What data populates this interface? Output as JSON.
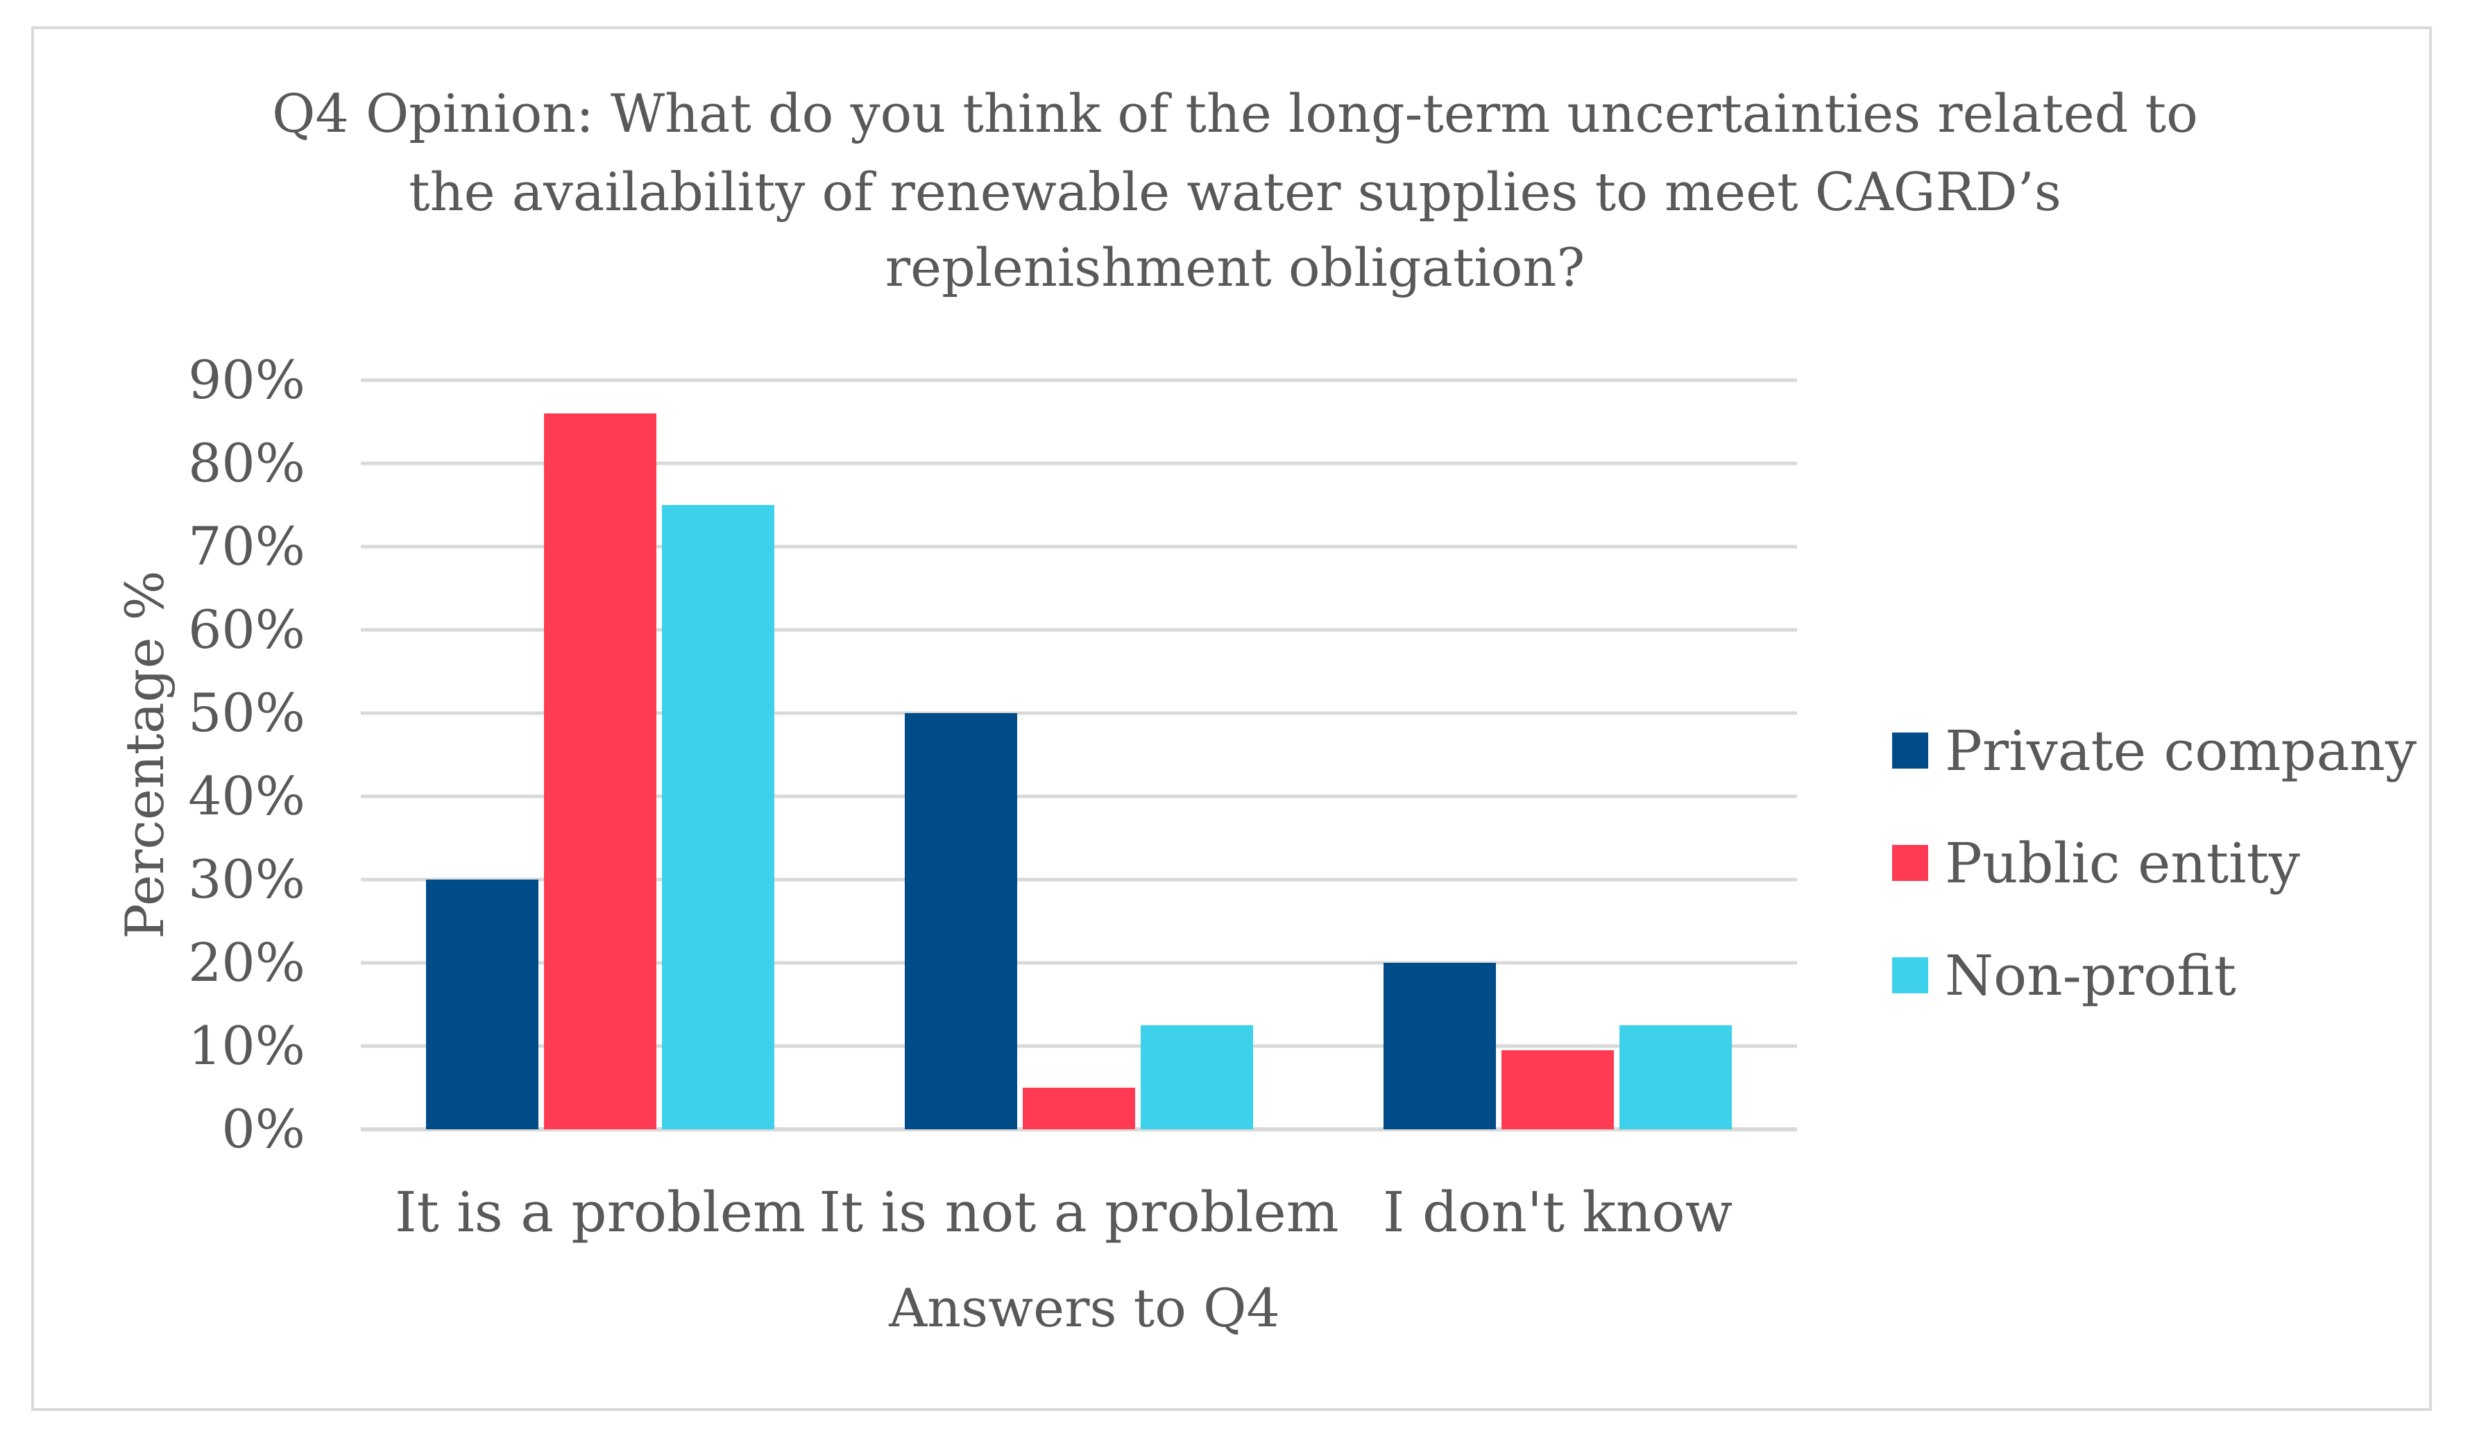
{
  "chart_data": {
    "type": "bar",
    "title_lines": [
      "Q4 Opinion: What do you think of the long-term uncertainties related to",
      "the availability of renewable water supplies to meet CAGRD’s",
      "replenishment obligation?"
    ],
    "xlabel": "Answers to Q4",
    "ylabel": "Percentage %",
    "categories": [
      "It is a problem",
      "It is not a problem",
      "I don't know"
    ],
    "y_ticks": [
      "0%",
      "10%",
      "20%",
      "30%",
      "40%",
      "50%",
      "60%",
      "70%",
      "80%",
      "90%"
    ],
    "ylim": [
      0,
      90
    ],
    "grid": true,
    "legend_position": "right",
    "series": [
      {
        "name": "Private company",
        "color": "#004c88",
        "values": [
          30,
          50,
          20
        ]
      },
      {
        "name": "Public entity",
        "color": "#ff3b54",
        "values": [
          86,
          5,
          9.5
        ]
      },
      {
        "name": "Non-profit",
        "color": "#3dd1ec",
        "values": [
          75,
          12.5,
          12.5
        ]
      }
    ]
  }
}
